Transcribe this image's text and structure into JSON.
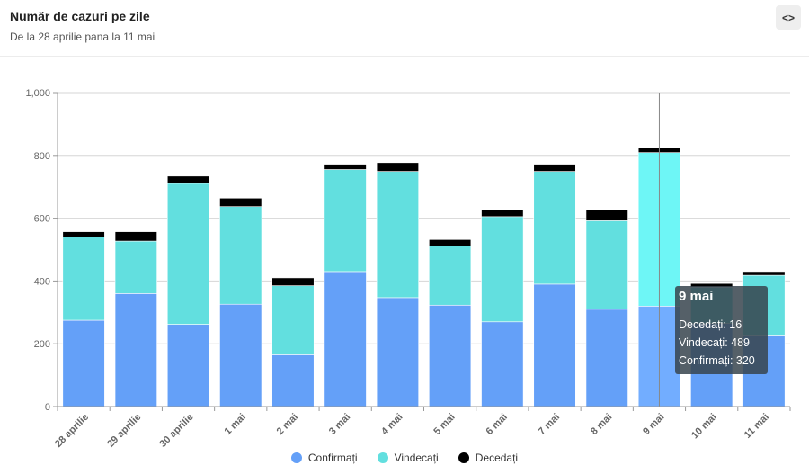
{
  "header": {
    "title": "Număr de cazuri pe zile",
    "subtitle": "De la 28 aprilie pana la 11 mai",
    "embed_label": "<>"
  },
  "colors": {
    "confirmati": "#64a0f8",
    "vindecati": "#62dfdf",
    "decedati": "#000000",
    "hover_confirmati": "#72adff",
    "hover_vindecati": "#6ef6f6"
  },
  "chart_data": {
    "type": "bar",
    "stacked": true,
    "categories": [
      "28 aprilie",
      "29 aprilie",
      "30 aprilie",
      "1 mai",
      "2 mai",
      "3 mai",
      "4 mai",
      "5 mai",
      "6 mai",
      "7 mai",
      "8 mai",
      "9 mai",
      "10 mai",
      "11 mai"
    ],
    "series": [
      {
        "name": "Confirmați",
        "values": [
          275,
          360,
          262,
          326,
          165,
          430,
          347,
          323,
          270,
          390,
          310,
          320,
          265,
          225
        ]
      },
      {
        "name": "Vindecați",
        "values": [
          265,
          167,
          449,
          311,
          220,
          325,
          402,
          188,
          335,
          359,
          282,
          489,
          115,
          193
        ]
      },
      {
        "name": "Decedați",
        "values": [
          17,
          30,
          23,
          27,
          25,
          17,
          28,
          21,
          21,
          23,
          35,
          16,
          12,
          12
        ]
      }
    ],
    "y_ticks": [
      "0",
      "200",
      "400",
      "600",
      "800",
      "1,000"
    ],
    "ylim": [
      0,
      1000
    ],
    "grid": true,
    "legend_position": "bottom-center",
    "hovered_category": "9 mai"
  },
  "tooltip": {
    "title": "9 mai",
    "lines": [
      "Decedați: 16",
      "Vindecați: 489",
      "Confirmați: 320"
    ]
  }
}
